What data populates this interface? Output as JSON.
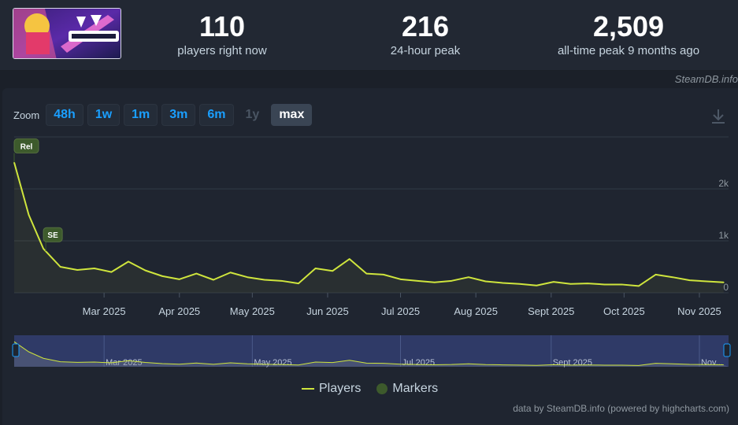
{
  "stats": [
    {
      "value": "110",
      "label": "players right now"
    },
    {
      "value": "216",
      "label": "24-hour peak"
    },
    {
      "value": "2,509",
      "label": "all-time peak 9 months ago"
    }
  ],
  "credit_top": "SteamDB.info",
  "zoom": {
    "label": "Zoom",
    "buttons": [
      "48h",
      "1w",
      "1m",
      "3m",
      "6m",
      "1y",
      "max"
    ],
    "disabled": [
      "1y"
    ],
    "active": "max"
  },
  "legend": {
    "players": "Players",
    "markers": "Markers"
  },
  "credit_bottom": "data by SteamDB.info (powered by highcharts.com)",
  "colors": {
    "line": "#cfe53d",
    "marker": "#3d5a2c",
    "nav_bg": "#2f3a67",
    "button_text": "#1a9fff"
  },
  "icons": {
    "download": "download-icon"
  },
  "chart_data": {
    "type": "line",
    "series": [
      {
        "name": "Players",
        "x": [
          "2025-01-23",
          "2025-01-29",
          "2025-02-04",
          "2025-02-11",
          "2025-02-18",
          "2025-02-25",
          "2025-03-04",
          "2025-03-11",
          "2025-03-18",
          "2025-03-25",
          "2025-04-01",
          "2025-04-08",
          "2025-04-15",
          "2025-04-22",
          "2025-04-29",
          "2025-05-06",
          "2025-05-13",
          "2025-05-20",
          "2025-05-27",
          "2025-06-03",
          "2025-06-10",
          "2025-06-17",
          "2025-06-24",
          "2025-07-01",
          "2025-07-08",
          "2025-07-15",
          "2025-07-22",
          "2025-07-29",
          "2025-08-05",
          "2025-08-12",
          "2025-08-19",
          "2025-08-26",
          "2025-09-02",
          "2025-09-09",
          "2025-09-16",
          "2025-09-23",
          "2025-09-30",
          "2025-10-07",
          "2025-10-14",
          "2025-10-21",
          "2025-10-28",
          "2025-11-04",
          "2025-11-11"
        ],
        "values": [
          2509,
          1500,
          850,
          500,
          440,
          470,
          400,
          600,
          430,
          320,
          260,
          370,
          250,
          390,
          300,
          250,
          230,
          180,
          470,
          420,
          650,
          370,
          350,
          260,
          230,
          200,
          230,
          300,
          220,
          190,
          170,
          140,
          210,
          170,
          180,
          160,
          160,
          130,
          350,
          300,
          240,
          220,
          200
        ]
      }
    ],
    "markers": [
      {
        "label": "Rel",
        "x": "2025-01-23"
      },
      {
        "label": "SE",
        "x": "2025-02-05"
      }
    ],
    "x_tick_labels": [
      "Mar 2025",
      "Apr 2025",
      "May 2025",
      "Jun 2025",
      "Jul 2025",
      "Aug 2025",
      "Sept 2025",
      "Oct 2025",
      "Nov 2025"
    ],
    "x_ticks": [
      "2025-03-01",
      "2025-04-01",
      "2025-05-01",
      "2025-06-01",
      "2025-07-01",
      "2025-08-01",
      "2025-09-01",
      "2025-10-01",
      "2025-11-01"
    ],
    "xlim": [
      "2025-01-23",
      "2025-11-13"
    ],
    "y_ticks": [
      0,
      1000,
      2000
    ],
    "y_tick_labels": [
      "0",
      "1k",
      "2k"
    ],
    "ylim": [
      0,
      3000
    ],
    "navigator_labels": [
      "Mar 2025",
      "May 2025",
      "Jul 2025",
      "Sept 2025",
      "Nov..."
    ],
    "navigator_ticks": [
      "2025-03-01",
      "2025-05-01",
      "2025-07-01",
      "2025-09-01",
      "2025-11-01"
    ],
    "grid": true,
    "legend_position": "bottom"
  }
}
